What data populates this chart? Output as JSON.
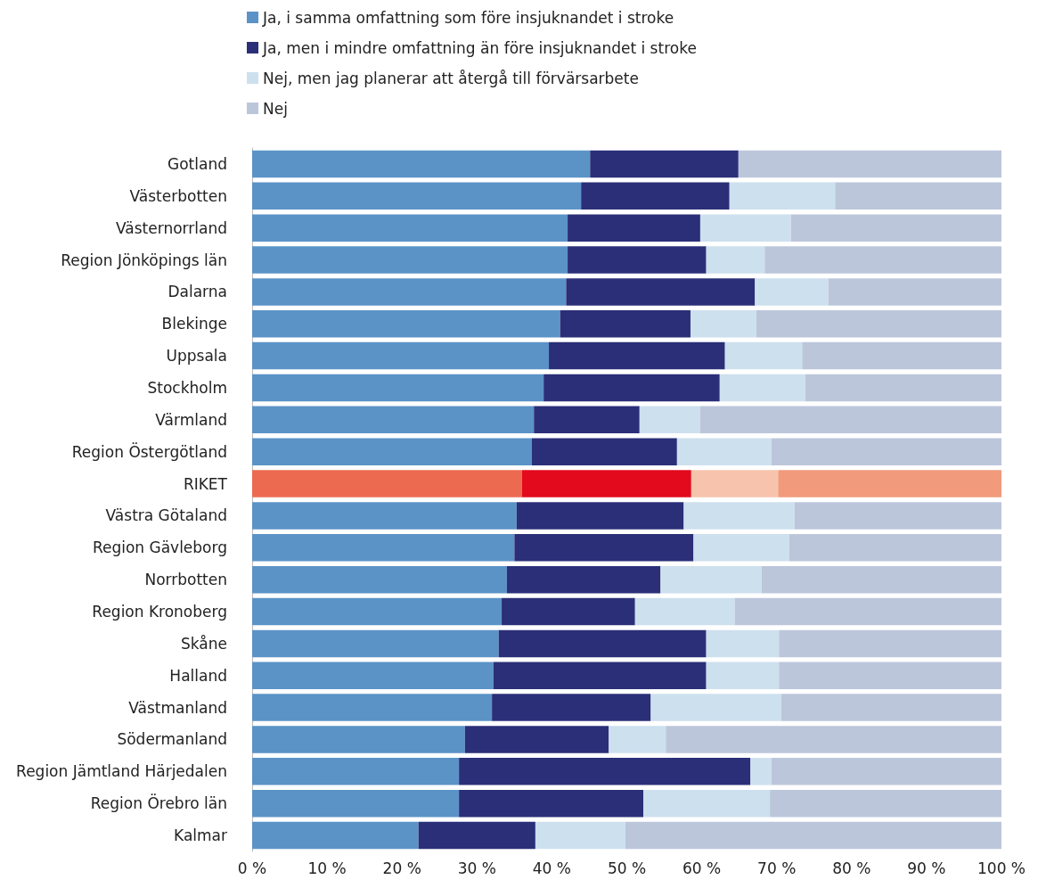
{
  "chart_data": {
    "type": "bar",
    "orientation": "horizontal",
    "stacked": true,
    "legend": "top",
    "categories": [
      "Gotland",
      "Västerbotten",
      "Västernorrland",
      "Region Jönköpings län",
      "Dalarna",
      "Blekinge",
      "Uppsala",
      "Stockholm",
      "Värmland",
      "Region Östergötland",
      "RIKET",
      "Västra Götaland",
      "Region Gävleborg",
      "Norrbotten",
      "Region Kronoberg",
      "Skåne",
      "Halland",
      "Västmanland",
      "Södermanland",
      "Region Jämtland Härjedalen",
      "Region Örebro län",
      "Kalmar"
    ],
    "series": [
      {
        "name": "Ja, i samma omfattning som före insjuknandet i stroke",
        "color": "#5b93c7",
        "colors": [
          "#5b93c7",
          "#5b93c7",
          "#5b93c7",
          "#5b93c7",
          "#5b93c7",
          "#5b93c7",
          "#5b93c7",
          "#5b93c7",
          "#5b93c7",
          "#5b93c7",
          "#ec6a50",
          "#5b93c7",
          "#5b93c7",
          "#5b93c7",
          "#5b93c7",
          "#5b93c7",
          "#5b93c7",
          "#5b93c7",
          "#5b93c7",
          "#5b93c7",
          "#5b93c7",
          "#5b93c7"
        ],
        "values": [
          45.1,
          43.9,
          42.1,
          42.1,
          41.9,
          41.1,
          39.6,
          38.9,
          37.6,
          37.3,
          36.0,
          35.3,
          35.0,
          34.0,
          33.3,
          32.9,
          32.2,
          32.0,
          28.4,
          27.6,
          27.6,
          22.2
        ]
      },
      {
        "name": "Ja, men i mindre omfattning än före insjuknandet i stroke",
        "color": "#2b2f78",
        "colors": [
          "#2b2f78",
          "#2b2f78",
          "#2b2f78",
          "#2b2f78",
          "#2b2f78",
          "#2b2f78",
          "#2b2f78",
          "#2b2f78",
          "#2b2f78",
          "#2b2f78",
          "#e30a1d",
          "#2b2f78",
          "#2b2f78",
          "#2b2f78",
          "#2b2f78",
          "#2b2f78",
          "#2b2f78",
          "#2b2f78",
          "#2b2f78",
          "#2b2f78",
          "#2b2f78",
          "#2b2f78"
        ],
        "values": [
          19.8,
          19.8,
          17.7,
          18.5,
          25.2,
          17.4,
          23.5,
          23.5,
          14.1,
          19.4,
          22.6,
          22.3,
          23.9,
          20.5,
          17.8,
          27.7,
          28.4,
          21.2,
          19.2,
          38.9,
          24.6,
          15.6
        ]
      },
      {
        "name": "Nej, men jag planerar att återgå till förvärsarbete",
        "color": "#cde0ee",
        "colors": [
          "#cde0ee",
          "#cde0ee",
          "#cde0ee",
          "#cde0ee",
          "#cde0ee",
          "#cde0ee",
          "#cde0ee",
          "#cde0ee",
          "#cde0ee",
          "#cde0ee",
          "#f7c3ad",
          "#cde0ee",
          "#cde0ee",
          "#cde0ee",
          "#cde0ee",
          "#cde0ee",
          "#cde0ee",
          "#cde0ee",
          "#cde0ee",
          "#cde0ee",
          "#cde0ee",
          "#cde0ee"
        ],
        "values": [
          0,
          14.1,
          12.1,
          7.8,
          9.8,
          8.8,
          10.3,
          11.4,
          8.1,
          12.6,
          11.6,
          14.8,
          12.8,
          13.5,
          13.3,
          9.7,
          9.7,
          17.4,
          7.6,
          2.8,
          16.9,
          12.0
        ]
      },
      {
        "name": "Nej",
        "color": "#bcc6db",
        "colors": [
          "#bcc6db",
          "#bcc6db",
          "#bcc6db",
          "#bcc6db",
          "#bcc6db",
          "#bcc6db",
          "#bcc6db",
          "#bcc6db",
          "#bcc6db",
          "#bcc6db",
          "#f19a7c",
          "#bcc6db",
          "#bcc6db",
          "#bcc6db",
          "#bcc6db",
          "#bcc6db",
          "#bcc6db",
          "#bcc6db",
          "#bcc6db",
          "#bcc6db",
          "#bcc6db",
          "#bcc6db"
        ],
        "values": [
          35.1,
          22.2,
          28.1,
          31.6,
          23.1,
          32.7,
          26.6,
          26.2,
          40.2,
          30.7,
          29.8,
          27.6,
          28.3,
          32.0,
          35.6,
          29.7,
          29.7,
          29.4,
          44.8,
          30.7,
          30.9,
          50.2
        ]
      }
    ],
    "xlim": [
      0,
      100
    ],
    "xticks": [
      {
        "value": 0,
        "label": "0 %"
      },
      {
        "value": 10,
        "label": "10 %"
      },
      {
        "value": 20,
        "label": "20 %"
      },
      {
        "value": 30,
        "label": "30 %"
      },
      {
        "value": 40,
        "label": "40 %"
      },
      {
        "value": 50,
        "label": "50 %"
      },
      {
        "value": 60,
        "label": "60 %"
      },
      {
        "value": 70,
        "label": "70 %"
      },
      {
        "value": 80,
        "label": "80 %"
      },
      {
        "value": 90,
        "label": "90 %"
      },
      {
        "value": 100,
        "label": "100 %"
      }
    ]
  }
}
